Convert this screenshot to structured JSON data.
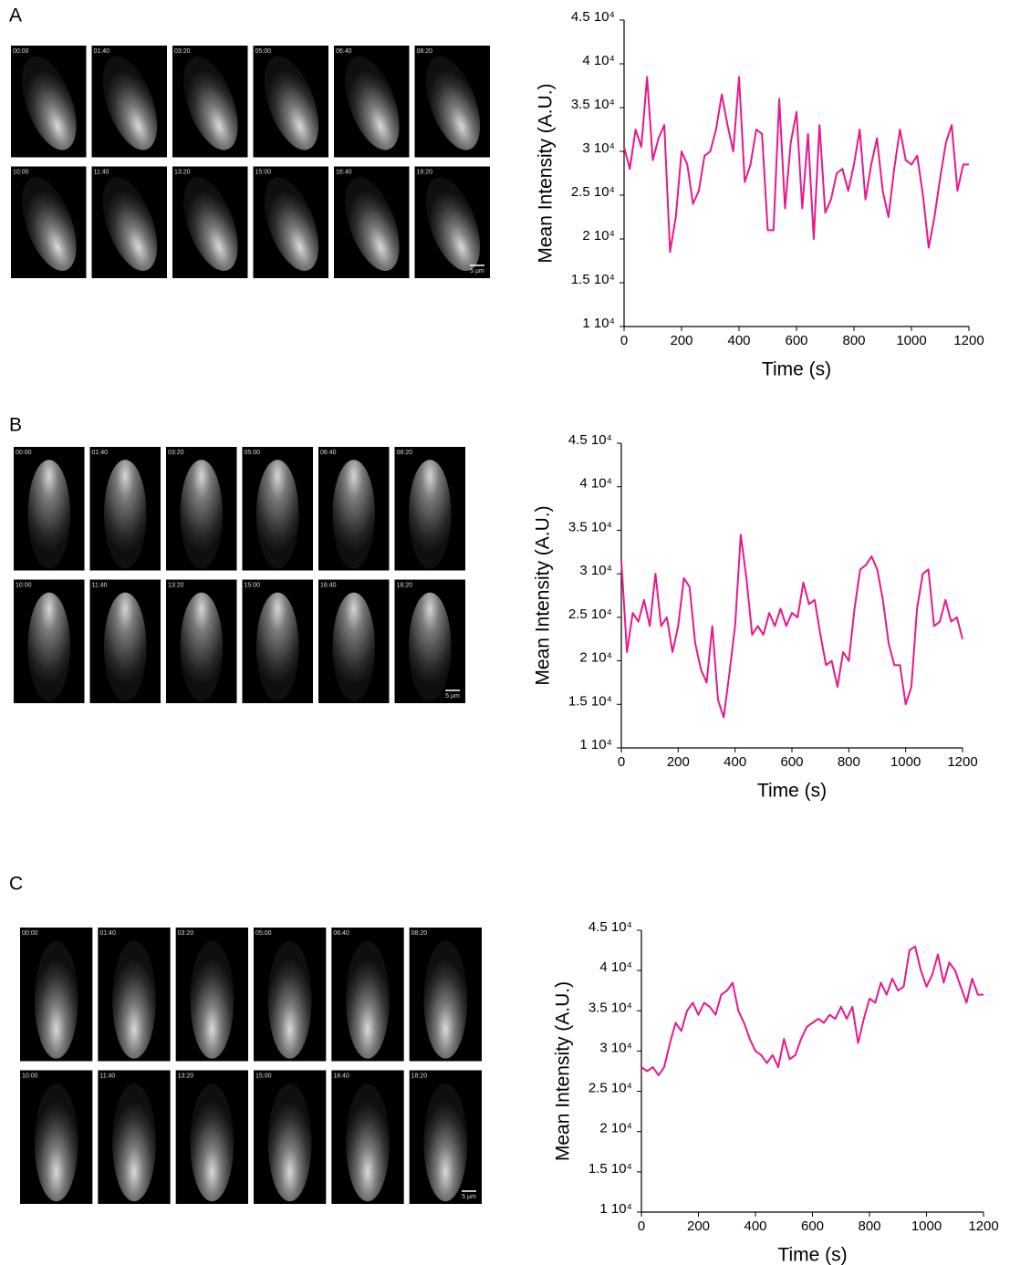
{
  "panels": [
    {
      "label": "A",
      "timestamps": [
        "00:00",
        "01:40",
        "03:20",
        "05:00",
        "06:40",
        "08:20",
        "10:00",
        "11:40",
        "13:20",
        "15:00",
        "16:40",
        "18:20"
      ],
      "scale_bar": "5 µm"
    },
    {
      "label": "B",
      "timestamps": [
        "00:00",
        "01:40",
        "03:20",
        "05:00",
        "06:40",
        "08:20",
        "10:00",
        "11:40",
        "13:20",
        "15:00",
        "16:40",
        "18:20"
      ],
      "scale_bar": "5 µm"
    },
    {
      "label": "C",
      "timestamps": [
        "00:00",
        "01:40",
        "03:20",
        "05:00",
        "06:40",
        "08:20",
        "10:00",
        "11:40",
        "13:20",
        "15:00",
        "16:40",
        "18:20"
      ],
      "scale_bar": "5 µm"
    }
  ],
  "chart_data": [
    {
      "type": "line",
      "x_label": "Time (s)",
      "y_label": "Mean Intensity (A.U.)",
      "color": "#e8188c",
      "xlim": [
        0,
        1200
      ],
      "ylim": [
        10000,
        45000
      ],
      "xticks": [
        0,
        200,
        400,
        600,
        800,
        1000,
        1200
      ],
      "yticks": [
        {
          "value": 10000,
          "label": "1 10⁴"
        },
        {
          "value": 15000,
          "label": "1.5 10⁴"
        },
        {
          "value": 20000,
          "label": "2 10⁴"
        },
        {
          "value": 25000,
          "label": "2.5 10⁴"
        },
        {
          "value": 30000,
          "label": "3 10⁴"
        },
        {
          "value": 35000,
          "label": "3.5 10⁴"
        },
        {
          "value": 40000,
          "label": "4 10⁴"
        },
        {
          "value": 45000,
          "label": "4.5 10⁴"
        }
      ],
      "x": [
        0,
        20,
        40,
        60,
        80,
        100,
        120,
        140,
        160,
        180,
        200,
        220,
        240,
        260,
        280,
        300,
        320,
        340,
        360,
        380,
        400,
        420,
        440,
        460,
        480,
        500,
        520,
        540,
        560,
        580,
        600,
        620,
        640,
        660,
        680,
        700,
        720,
        740,
        760,
        780,
        800,
        820,
        840,
        860,
        880,
        900,
        920,
        940,
        960,
        980,
        1000,
        1020,
        1040,
        1060,
        1080,
        1100,
        1120,
        1140,
        1160,
        1180,
        1200
      ],
      "values": [
        30500,
        28000,
        32500,
        30500,
        38500,
        29000,
        31500,
        33000,
        18500,
        22500,
        30000,
        28500,
        24000,
        25500,
        29500,
        30000,
        32500,
        36500,
        33000,
        30000,
        38500,
        26500,
        28500,
        32500,
        32000,
        21000,
        21000,
        36000,
        23500,
        31000,
        34500,
        23500,
        32000,
        20000,
        33000,
        23000,
        24500,
        27500,
        28000,
        25500,
        28500,
        32500,
        24500,
        28500,
        31500,
        25500,
        22500,
        28000,
        32500,
        29000,
        28500,
        29500,
        25000,
        19000,
        22500,
        27000,
        31000,
        33000,
        25500,
        28500,
        28500
      ]
    },
    {
      "type": "line",
      "x_label": "Time (s)",
      "y_label": "Mean Intensity (A.U.)",
      "color": "#e8188c",
      "xlim": [
        0,
        1200
      ],
      "ylim": [
        10000,
        45000
      ],
      "xticks": [
        0,
        200,
        400,
        600,
        800,
        1000,
        1200
      ],
      "yticks": [
        {
          "value": 10000,
          "label": "1 10⁴"
        },
        {
          "value": 15000,
          "label": "1.5 10⁴"
        },
        {
          "value": 20000,
          "label": "2 10⁴"
        },
        {
          "value": 25000,
          "label": "2.5 10⁴"
        },
        {
          "value": 30000,
          "label": "3 10⁴"
        },
        {
          "value": 35000,
          "label": "3.5 10⁴"
        },
        {
          "value": 40000,
          "label": "4 10⁴"
        },
        {
          "value": 45000,
          "label": "4.5 10⁴"
        }
      ],
      "x": [
        0,
        20,
        40,
        60,
        80,
        100,
        120,
        140,
        160,
        180,
        200,
        220,
        240,
        260,
        280,
        300,
        320,
        340,
        360,
        380,
        400,
        420,
        440,
        460,
        480,
        500,
        520,
        540,
        560,
        580,
        600,
        620,
        640,
        660,
        680,
        700,
        720,
        740,
        760,
        780,
        800,
        820,
        840,
        860,
        880,
        900,
        920,
        940,
        960,
        980,
        1000,
        1020,
        1040,
        1060,
        1080,
        1100,
        1120,
        1140,
        1160,
        1180,
        1200
      ],
      "values": [
        31500,
        21000,
        25500,
        24500,
        27000,
        24000,
        30000,
        24000,
        25000,
        21000,
        24000,
        29500,
        28500,
        22000,
        19000,
        17500,
        24000,
        15500,
        13500,
        18500,
        24000,
        34500,
        29500,
        23000,
        24000,
        23000,
        25500,
        24000,
        26000,
        24000,
        25500,
        25000,
        29000,
        26500,
        27000,
        23000,
        19500,
        20000,
        17000,
        21000,
        20000,
        26000,
        30500,
        31000,
        32000,
        30500,
        27000,
        22000,
        19500,
        19500,
        15000,
        17000,
        26000,
        30000,
        30500,
        24000,
        24500,
        27000,
        24500,
        25000,
        22500
      ]
    },
    {
      "type": "line",
      "x_label": "Time (s)",
      "y_label": "Mean Intensity (A.U.)",
      "color": "#e8188c",
      "xlim": [
        0,
        1200
      ],
      "ylim": [
        10000,
        45000
      ],
      "xticks": [
        0,
        200,
        400,
        600,
        800,
        1000,
        1200
      ],
      "yticks": [
        {
          "value": 10000,
          "label": "1 10⁴"
        },
        {
          "value": 15000,
          "label": "1.5 10⁴"
        },
        {
          "value": 20000,
          "label": "2 10⁴"
        },
        {
          "value": 25000,
          "label": "2.5 10⁴"
        },
        {
          "value": 30000,
          "label": "3 10⁴"
        },
        {
          "value": 35000,
          "label": "3.5 10⁴"
        },
        {
          "value": 40000,
          "label": "4 10⁴"
        },
        {
          "value": 45000,
          "label": "4.5 10⁴"
        }
      ],
      "x": [
        0,
        20,
        40,
        60,
        80,
        100,
        120,
        140,
        160,
        180,
        200,
        220,
        240,
        260,
        280,
        300,
        320,
        340,
        360,
        380,
        400,
        420,
        440,
        460,
        480,
        500,
        520,
        540,
        560,
        580,
        600,
        620,
        640,
        660,
        680,
        700,
        720,
        740,
        760,
        780,
        800,
        820,
        840,
        860,
        880,
        900,
        920,
        940,
        960,
        980,
        1000,
        1020,
        1040,
        1060,
        1080,
        1100,
        1120,
        1140,
        1160,
        1180,
        1200
      ],
      "values": [
        28000,
        27500,
        28000,
        27000,
        28000,
        31000,
        33500,
        32500,
        35000,
        36000,
        34500,
        36000,
        35500,
        34500,
        37000,
        37500,
        38500,
        35000,
        33500,
        31500,
        30000,
        29500,
        28500,
        29500,
        28000,
        31500,
        29000,
        29500,
        31500,
        33000,
        33500,
        34000,
        33500,
        34500,
        34000,
        35500,
        34000,
        35500,
        31000,
        34000,
        36500,
        36000,
        38500,
        37000,
        39000,
        37500,
        38000,
        42500,
        43000,
        40000,
        38000,
        39500,
        42000,
        38500,
        41000,
        40000,
        38000,
        36000,
        39000,
        37000,
        37000
      ]
    }
  ]
}
